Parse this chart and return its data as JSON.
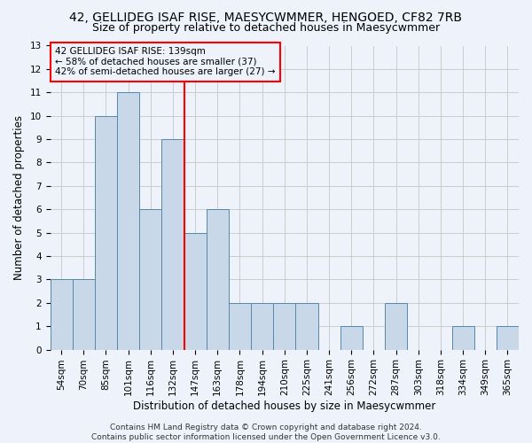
{
  "title1": "42, GELLIDEG ISAF RISE, MAESYCWMMER, HENGOED, CF82 7RB",
  "title2": "Size of property relative to detached houses in Maesycwmmer",
  "xlabel": "Distribution of detached houses by size in Maesycwmmer",
  "ylabel": "Number of detached properties",
  "categories": [
    "54sqm",
    "70sqm",
    "85sqm",
    "101sqm",
    "116sqm",
    "132sqm",
    "147sqm",
    "163sqm",
    "178sqm",
    "194sqm",
    "210sqm",
    "225sqm",
    "241sqm",
    "256sqm",
    "272sqm",
    "287sqm",
    "303sqm",
    "318sqm",
    "334sqm",
    "349sqm",
    "365sqm"
  ],
  "values": [
    3,
    3,
    10,
    11,
    6,
    9,
    5,
    6,
    2,
    2,
    2,
    2,
    0,
    1,
    0,
    2,
    0,
    0,
    1,
    0,
    1
  ],
  "bar_color": "#c8d8e8",
  "bar_edge_color": "#5588aa",
  "red_line_x": 5.5,
  "highlight_color": "red",
  "ylim": [
    0,
    13
  ],
  "yticks": [
    0,
    1,
    2,
    3,
    4,
    5,
    6,
    7,
    8,
    9,
    10,
    11,
    12,
    13
  ],
  "annotation_text": "42 GELLIDEG ISAF RISE: 139sqm\n← 58% of detached houses are smaller (37)\n42% of semi-detached houses are larger (27) →",
  "footer": "Contains HM Land Registry data © Crown copyright and database right 2024.\nContains public sector information licensed under the Open Government Licence v3.0.",
  "background_color": "#eef2fa",
  "grid_color": "#cccccc",
  "title_fontsize": 10,
  "subtitle_fontsize": 9,
  "label_fontsize": 8.5,
  "tick_fontsize": 7.5,
  "footer_fontsize": 6.5,
  "annotation_fontsize": 7.5
}
